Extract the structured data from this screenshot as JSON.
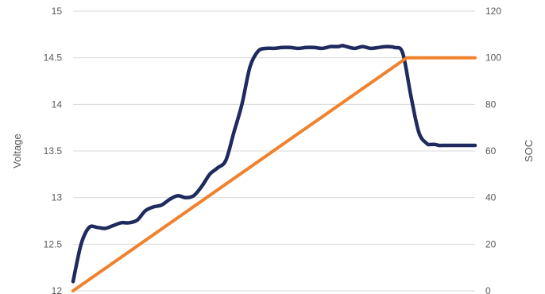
{
  "chart_data": {
    "type": "line",
    "title": "",
    "xlabel": "",
    "ylabel": "Voltage",
    "y2label": "SOC",
    "ylim": [
      12,
      15
    ],
    "y2lim": [
      0,
      120
    ],
    "y_ticks": [
      "12",
      "12.5",
      "13",
      "13.5",
      "14",
      "14.5",
      "15"
    ],
    "y2_ticks": [
      "0",
      "20",
      "40",
      "60",
      "80",
      "100",
      "120"
    ],
    "grid": true,
    "legend": "none",
    "x": [
      0,
      0.02,
      0.04,
      0.06,
      0.08,
      0.1,
      0.12,
      0.14,
      0.16,
      0.18,
      0.2,
      0.22,
      0.24,
      0.26,
      0.28,
      0.3,
      0.32,
      0.34,
      0.36,
      0.38,
      0.4,
      0.42,
      0.44,
      0.46,
      0.48,
      0.5,
      0.52,
      0.54,
      0.56,
      0.58,
      0.6,
      0.62,
      0.64,
      0.65,
      0.66,
      0.67,
      0.68,
      0.7,
      0.72,
      0.74,
      0.76,
      0.78,
      0.8,
      0.82,
      0.84,
      0.86,
      0.88,
      0.89,
      0.9,
      0.91,
      0.92,
      0.93,
      0.94,
      0.96,
      0.98,
      1.0
    ],
    "series": [
      {
        "axis": "left",
        "color": "#1f2a5e",
        "values": [
          12.1,
          12.5,
          12.68,
          12.68,
          12.67,
          12.7,
          12.73,
          12.73,
          12.76,
          12.86,
          12.9,
          12.92,
          12.98,
          13.02,
          13.0,
          13.02,
          13.12,
          13.25,
          13.32,
          13.4,
          13.7,
          14.0,
          14.4,
          14.57,
          14.6,
          14.6,
          14.61,
          14.61,
          14.6,
          14.61,
          14.61,
          14.6,
          14.62,
          14.62,
          14.62,
          14.63,
          14.62,
          14.6,
          14.62,
          14.6,
          14.61,
          14.62,
          14.61,
          14.55,
          14.1,
          13.7,
          13.58,
          13.57,
          13.57,
          13.56,
          13.56,
          13.56,
          13.56,
          13.56,
          13.56,
          13.56
        ]
      },
      {
        "axis": "right",
        "color": "#f0822d",
        "x": [
          0,
          0.83,
          1.0
        ],
        "values": [
          0,
          100,
          100
        ]
      }
    ]
  }
}
